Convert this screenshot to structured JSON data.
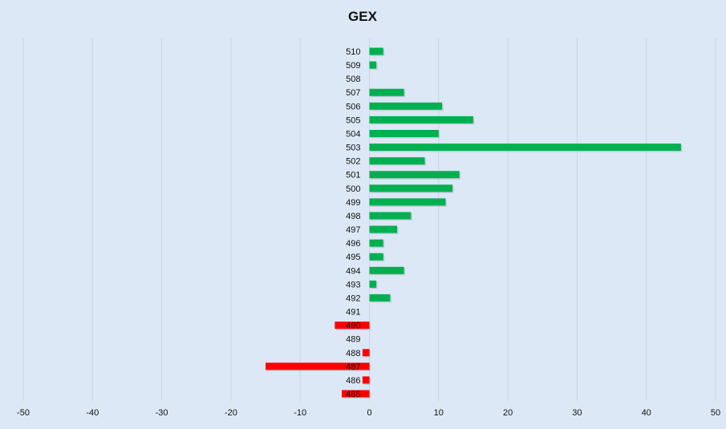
{
  "chart_data": {
    "type": "bar",
    "orientation": "horizontal",
    "title": "GEX",
    "xlabel": "",
    "ylabel": "",
    "xlim": [
      -50,
      50
    ],
    "xticks": [
      -50,
      -40,
      -30,
      -20,
      -10,
      0,
      10,
      20,
      30,
      40,
      50
    ],
    "grid": "vertical",
    "legend": "none",
    "colors": {
      "positive": "#00b050",
      "negative": "#ff0000",
      "background": "#dce8f5",
      "grid": "#c9d6e4"
    },
    "categories": [
      "510",
      "509",
      "508",
      "507",
      "506",
      "505",
      "504",
      "503",
      "502",
      "501",
      "500",
      "499",
      "498",
      "497",
      "496",
      "495",
      "494",
      "493",
      "492",
      "491",
      "490",
      "489",
      "488",
      "487",
      "486",
      "485"
    ],
    "values": [
      2,
      1,
      0,
      5,
      10.5,
      15,
      10,
      45,
      8,
      13,
      12,
      11,
      6,
      4,
      2,
      2,
      5,
      1,
      3,
      0,
      -5,
      0,
      -1,
      -15,
      -1,
      -4
    ]
  }
}
